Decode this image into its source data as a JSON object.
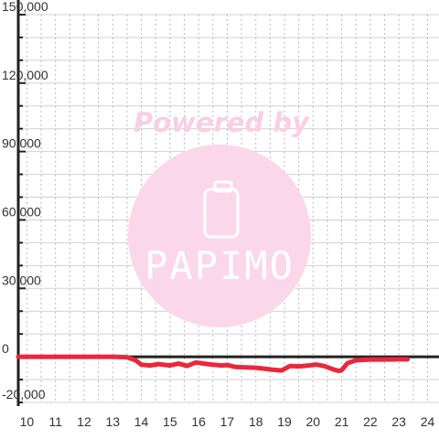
{
  "chart_data": {
    "type": "line",
    "title": "",
    "xlabel": "",
    "ylabel": "",
    "xlim": [
      9.7,
      24.4
    ],
    "ylim": [
      -20000,
      150000
    ],
    "x_ticks": [
      "10",
      "11",
      "12",
      "13",
      "14",
      "15",
      "16",
      "17",
      "18",
      "19",
      "20",
      "21",
      "22",
      "23",
      "24"
    ],
    "y_ticks": [
      "150,000",
      "120,000",
      "90,000",
      "60,000",
      "30,000",
      "0",
      "-20,000"
    ],
    "y_tick_values": [
      150000,
      120000,
      90000,
      60000,
      30000,
      0,
      -20000
    ],
    "x_tick_values": [
      10,
      11,
      12,
      13,
      14,
      15,
      16,
      17,
      18,
      19,
      20,
      21,
      22,
      23,
      24
    ],
    "grid": true,
    "legend": "none",
    "series": [
      {
        "color": "#e8283c",
        "x": [
          9.7,
          10,
          11,
          12,
          13,
          13.5,
          13.8,
          14.0,
          14.3,
          14.6,
          15.0,
          15.3,
          15.6,
          15.9,
          16.2,
          16.5,
          16.8,
          17.0,
          17.3,
          17.6,
          18.0,
          18.3,
          18.6,
          18.9,
          19.2,
          19.5,
          19.8,
          20.1,
          20.4,
          20.7,
          20.9,
          21.0,
          21.2,
          21.5,
          22.0,
          22.5,
          23.0,
          23.3
        ],
        "y": [
          0,
          0,
          0,
          0,
          0,
          -200,
          -1500,
          -3500,
          -3800,
          -3200,
          -3800,
          -3000,
          -4000,
          -2500,
          -3000,
          -3500,
          -3800,
          -3600,
          -4500,
          -4600,
          -4800,
          -5200,
          -5700,
          -6000,
          -4000,
          -4200,
          -3900,
          -3400,
          -4100,
          -5500,
          -6200,
          -5800,
          -2800,
          -1500,
          -1200,
          -1200,
          -1100,
          -1100
        ]
      }
    ]
  },
  "watermark": {
    "powered_by": "Powered by",
    "logo_text": "PAPIMO",
    "text_color": "#f9cfe4",
    "circle_color": "#fbd7ea",
    "device_icon": "phone-icon"
  },
  "colors": {
    "axis": "#222222",
    "grid_major": "#d0d0d0",
    "grid_minor": "#bbbbbb",
    "line": "#e8283c"
  }
}
